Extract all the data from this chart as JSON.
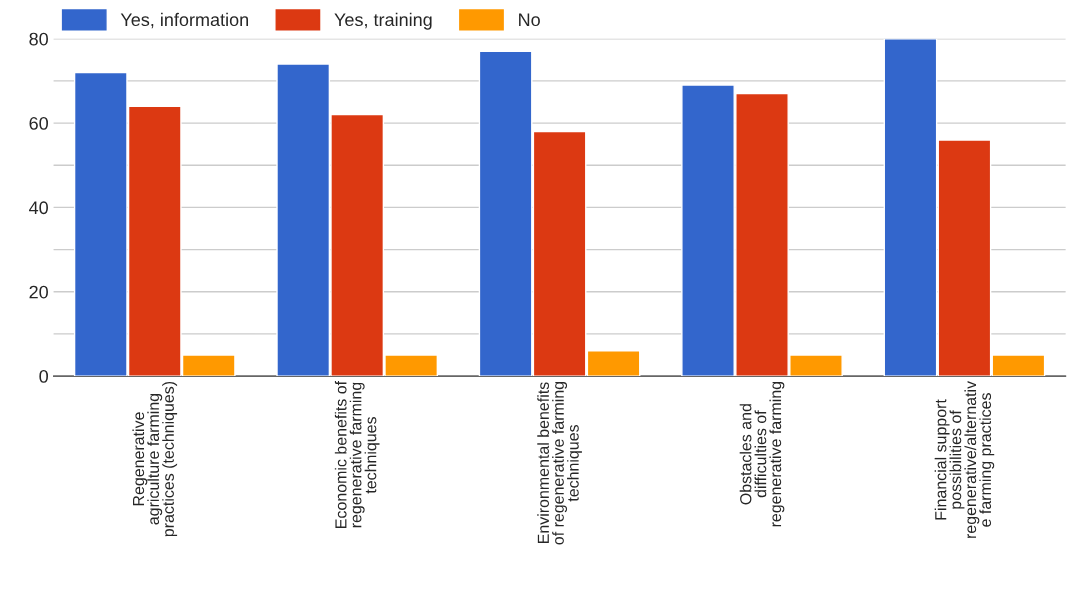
{
  "chart_data": {
    "type": "bar",
    "categories": [
      "Regenerative\nagriculture farming\npractices (techniques)",
      "Economic benefits of\nregenerative farming\ntechniques",
      "Environmental benefits\nof regenerative farming\ntechniques",
      "Obstacles and\ndifficulties of\nregenerative farming",
      "Financial support\npossibilities of\nregenerative/alternativ\ne farming practices"
    ],
    "series": [
      {
        "name": "Yes, information",
        "color": "#3366cc",
        "values": [
          72,
          74,
          77,
          69,
          80
        ]
      },
      {
        "name": "Yes, training",
        "color": "#dc3912",
        "values": [
          64,
          62,
          58,
          67,
          56
        ]
      },
      {
        "name": "No",
        "color": "#ff9900",
        "values": [
          5,
          5,
          6,
          5,
          5
        ]
      }
    ],
    "ylim": [
      0,
      80
    ],
    "yticks": [
      0,
      {
        "value": 10,
        "label": null
      },
      20,
      {
        "value": 30,
        "label": null
      },
      40,
      {
        "value": 50,
        "label": null
      },
      60,
      {
        "value": 70,
        "label": null
      },
      80
    ],
    "grid": "y",
    "legend": "top left"
  }
}
